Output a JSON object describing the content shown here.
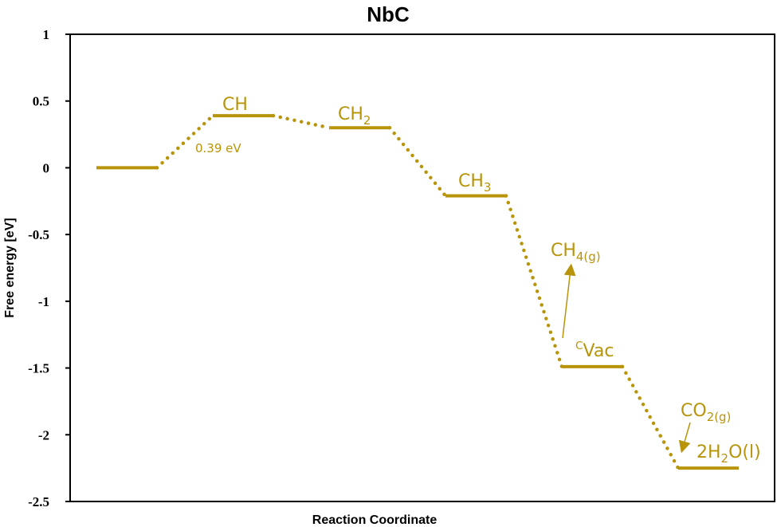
{
  "chart_data": {
    "type": "line",
    "title": "NbC",
    "xlabel": "Reaction Coordinate",
    "ylabel": "Free energy [eV]",
    "ylim": [
      -2.5,
      1
    ],
    "yticks": [
      1,
      0.5,
      0,
      -0.5,
      -1,
      -1.5,
      -2,
      -2.5
    ],
    "ytick_labels": [
      "1",
      "0.5",
      "0",
      "-0.5",
      "-1",
      "-1.5",
      "-2",
      "-2.5"
    ],
    "grid": false,
    "legend": "none",
    "color": "#B8940A",
    "levels": [
      {
        "index": 0,
        "energy": 0.0
      },
      {
        "index": 1,
        "energy": 0.39,
        "label": "CH"
      },
      {
        "index": 2,
        "energy": 0.3,
        "label": "CH",
        "sub": "2"
      },
      {
        "index": 3,
        "energy": -0.21,
        "label": "CH",
        "sub": "3"
      },
      {
        "index": 4,
        "energy": -1.49,
        "sup": "C",
        "label": "Vac"
      },
      {
        "index": 5,
        "energy": -2.25,
        "label": "2H",
        "sub": "2",
        "label_after": "O(l)"
      }
    ],
    "annotations": [
      {
        "text": "0.39 eV",
        "near_level": 1
      },
      {
        "text": "CH",
        "sub": "4(g)",
        "arrow_from_level": 4
      },
      {
        "text": "CO",
        "sub": "2(g)",
        "arrow_to_level": 5
      }
    ]
  }
}
